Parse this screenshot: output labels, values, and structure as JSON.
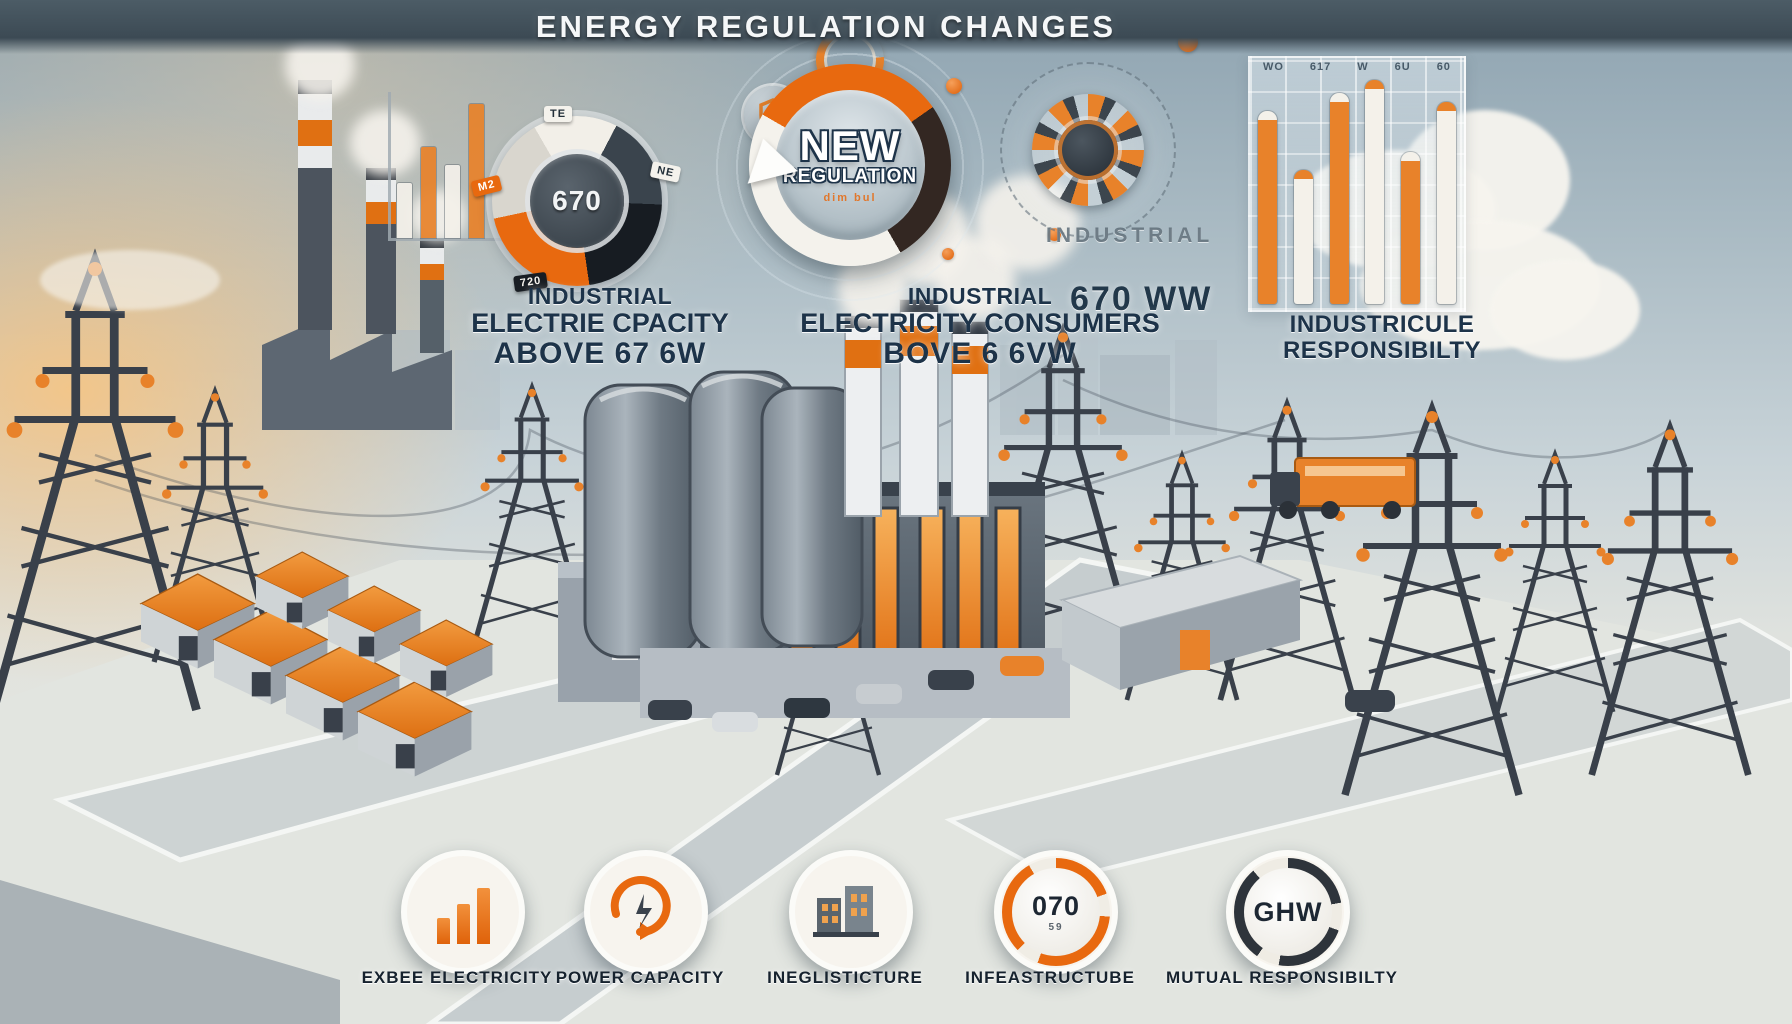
{
  "header": {
    "title": "ENERGY REGULATION CHANGES"
  },
  "colors": {
    "accent": "#e8690f",
    "navy": "#1d3349",
    "band": "#3c4a54",
    "cream": "#f4f2ec"
  },
  "central_badge": {
    "line1": "NEW",
    "line2": "REGULATION",
    "subtext": "dim bul"
  },
  "capacity_block": {
    "lines": [
      "INDUSTRIAL",
      "ELECTRIE CPACITY",
      "ABOVE 67 6W"
    ]
  },
  "consumers_block": {
    "lines": [
      "INDUSTRIAL",
      "ELECTRICITY CONSUMERS",
      "BOVE 6 6VW"
    ]
  },
  "industrial_label": "INDUSTRIAL",
  "capacity_value": "670 WW",
  "responsibility_block": {
    "lines": [
      "INDUSTRICULE",
      "RESPONSIBILTY"
    ]
  },
  "chart_data": [
    {
      "type": "bar",
      "name": "mini_bar_chart",
      "title": "",
      "categories": [
        "",
        "",
        "",
        ""
      ],
      "values": [
        38,
        62,
        50,
        92
      ],
      "colors": [
        "#f4f1ea",
        "#e8822a",
        "#f4f1ea",
        "#e8822a"
      ],
      "ylim": [
        0,
        100
      ],
      "note": "small sketched bar chart, unlabeled axes"
    },
    {
      "type": "pie",
      "name": "capacity_donut",
      "center_label": "670",
      "segments": [
        {
          "label": "TE",
          "value": 16,
          "color": "#f2efe8"
        },
        {
          "label": "NE",
          "value": 18,
          "color": "#3a444d"
        },
        {
          "label": "720",
          "value": 22,
          "color": "#171c22"
        },
        {
          "label": "M2",
          "value": 24,
          "color": "#e8690f"
        },
        {
          "label": "",
          "value": 20,
          "color": "#d9d6ce"
        }
      ]
    },
    {
      "type": "bar",
      "name": "regulation_bars",
      "title": "",
      "tick_labels": [
        "WO",
        "617",
        "W",
        "6U",
        "60"
      ],
      "bars": [
        {
          "h": 82,
          "color": "#e8822a",
          "cap": "#f4f1ea"
        },
        {
          "h": 56,
          "color": "#f4f1ea",
          "cap": "#e8822a"
        },
        {
          "h": 90,
          "color": "#e8822a",
          "cap": "#f4f1ea"
        },
        {
          "h": 96,
          "color": "#f4f1ea",
          "cap": "#e8822a"
        },
        {
          "h": 64,
          "color": "#e8822a",
          "cap": "#f4f1ea"
        },
        {
          "h": 86,
          "color": "#f4f1ea",
          "cap": "#e8822a"
        }
      ],
      "ylim": [
        0,
        100
      ],
      "note": "bars on translucent grid panel, garbled tick labels along top"
    }
  ],
  "bottom_row": [
    {
      "icon": "bar-chart-icon",
      "label": "EXBEE ELECTRICITY"
    },
    {
      "icon": "power-cycle-icon",
      "label": "POWER CAPACITY"
    },
    {
      "icon": "infrastructure-icon",
      "label": "INEGLISTICTURE"
    },
    {
      "icon": "capacity-meter-icon",
      "value": "070",
      "sub": "59",
      "label": "INFEASTRUCTUBE"
    },
    {
      "icon": "ghw-meter-icon",
      "value": "GHW",
      "sub": "",
      "label": "MUTUAL RESPONSIBILTY"
    }
  ]
}
